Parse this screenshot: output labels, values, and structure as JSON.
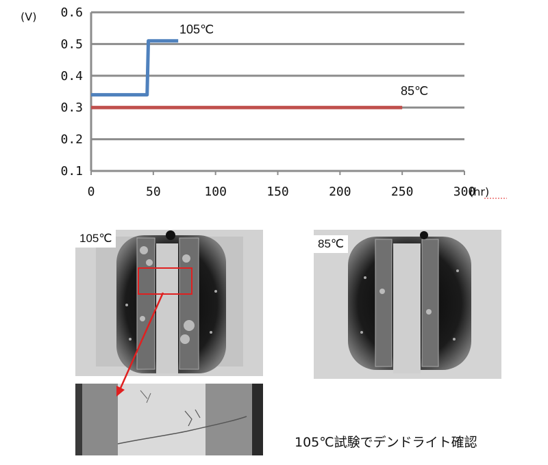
{
  "chart_data": {
    "type": "line",
    "ylabel": "(V)",
    "xunit": "(hr)",
    "xlim": [
      0,
      300
    ],
    "ylim": [
      0.1,
      0.6
    ],
    "xticks": [
      0,
      50,
      100,
      150,
      200,
      250,
      300
    ],
    "yticks": [
      "0.1",
      "0.2",
      "0.3",
      "0.4",
      "0.5",
      "0.6"
    ],
    "grid": true,
    "series": [
      {
        "name": "105℃",
        "color": "#4f81bd",
        "x": [
          0,
          45,
          46,
          70
        ],
        "y": [
          0.34,
          0.34,
          0.51,
          0.51
        ]
      },
      {
        "name": "85℃",
        "color": "#c0504d",
        "x": [
          0,
          50,
          100,
          150,
          200,
          250
        ],
        "y": [
          0.3,
          0.3,
          0.3,
          0.3,
          0.3,
          0.3
        ]
      }
    ]
  },
  "images": {
    "left_label": "105℃",
    "right_label": "85℃",
    "caption": "105℃試験でデンドライト確認",
    "highlight_color": "#e02020"
  }
}
